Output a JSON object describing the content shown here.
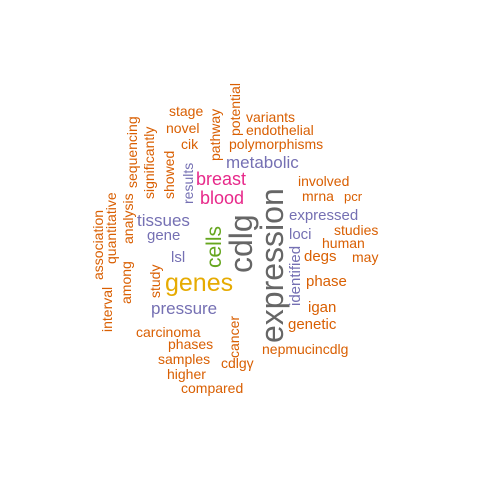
{
  "colors": {
    "background": "#ffffff",
    "orange": "#d95f02",
    "purple": "#7570b3",
    "magenta": "#e7298a",
    "green": "#66a61e",
    "gold": "#e6ab02",
    "gray": "#666666"
  },
  "words": [
    {
      "text": "expression",
      "color": "gray"
    },
    {
      "text": "cdlg",
      "color": "gray"
    },
    {
      "text": "genes",
      "color": "gold"
    },
    {
      "text": "cells",
      "color": "green"
    },
    {
      "text": "breast",
      "color": "magenta"
    },
    {
      "text": "blood",
      "color": "magenta"
    },
    {
      "text": "metabolic",
      "color": "purple"
    },
    {
      "text": "tissues",
      "color": "purple"
    },
    {
      "text": "pressure",
      "color": "purple"
    },
    {
      "text": "gene",
      "color": "purple"
    },
    {
      "text": "lsl",
      "color": "purple"
    },
    {
      "text": "expressed",
      "color": "purple"
    },
    {
      "text": "loci",
      "color": "purple"
    },
    {
      "text": "identified",
      "color": "purple"
    },
    {
      "text": "results",
      "color": "purple"
    },
    {
      "text": "stage",
      "color": "orange"
    },
    {
      "text": "novel",
      "color": "orange"
    },
    {
      "text": "cik",
      "color": "orange"
    },
    {
      "text": "pathway",
      "color": "orange"
    },
    {
      "text": "potential",
      "color": "orange"
    },
    {
      "text": "variants",
      "color": "orange"
    },
    {
      "text": "endothelial",
      "color": "orange"
    },
    {
      "text": "polymorphisms",
      "color": "orange"
    },
    {
      "text": "sequencing",
      "color": "orange"
    },
    {
      "text": "significantly",
      "color": "orange"
    },
    {
      "text": "showed",
      "color": "orange"
    },
    {
      "text": "involved",
      "color": "orange"
    },
    {
      "text": "mrna",
      "color": "orange"
    },
    {
      "text": "pcr",
      "color": "orange"
    },
    {
      "text": "studies",
      "color": "orange"
    },
    {
      "text": "human",
      "color": "orange"
    },
    {
      "text": "degs",
      "color": "orange"
    },
    {
      "text": "may",
      "color": "orange"
    },
    {
      "text": "phase",
      "color": "orange"
    },
    {
      "text": "igan",
      "color": "orange"
    },
    {
      "text": "genetic",
      "color": "orange"
    },
    {
      "text": "nepmucincdlg",
      "color": "orange"
    },
    {
      "text": "association",
      "color": "orange"
    },
    {
      "text": "quantitative",
      "color": "orange"
    },
    {
      "text": "analysis",
      "color": "orange"
    },
    {
      "text": "interval",
      "color": "orange"
    },
    {
      "text": "among",
      "color": "orange"
    },
    {
      "text": "study",
      "color": "orange"
    },
    {
      "text": "carcinoma",
      "color": "orange"
    },
    {
      "text": "cancer",
      "color": "orange"
    },
    {
      "text": "phases",
      "color": "orange"
    },
    {
      "text": "samples",
      "color": "orange"
    },
    {
      "text": "cdlgγ",
      "color": "orange"
    },
    {
      "text": "higher",
      "color": "orange"
    },
    {
      "text": "compared",
      "color": "orange"
    }
  ]
}
